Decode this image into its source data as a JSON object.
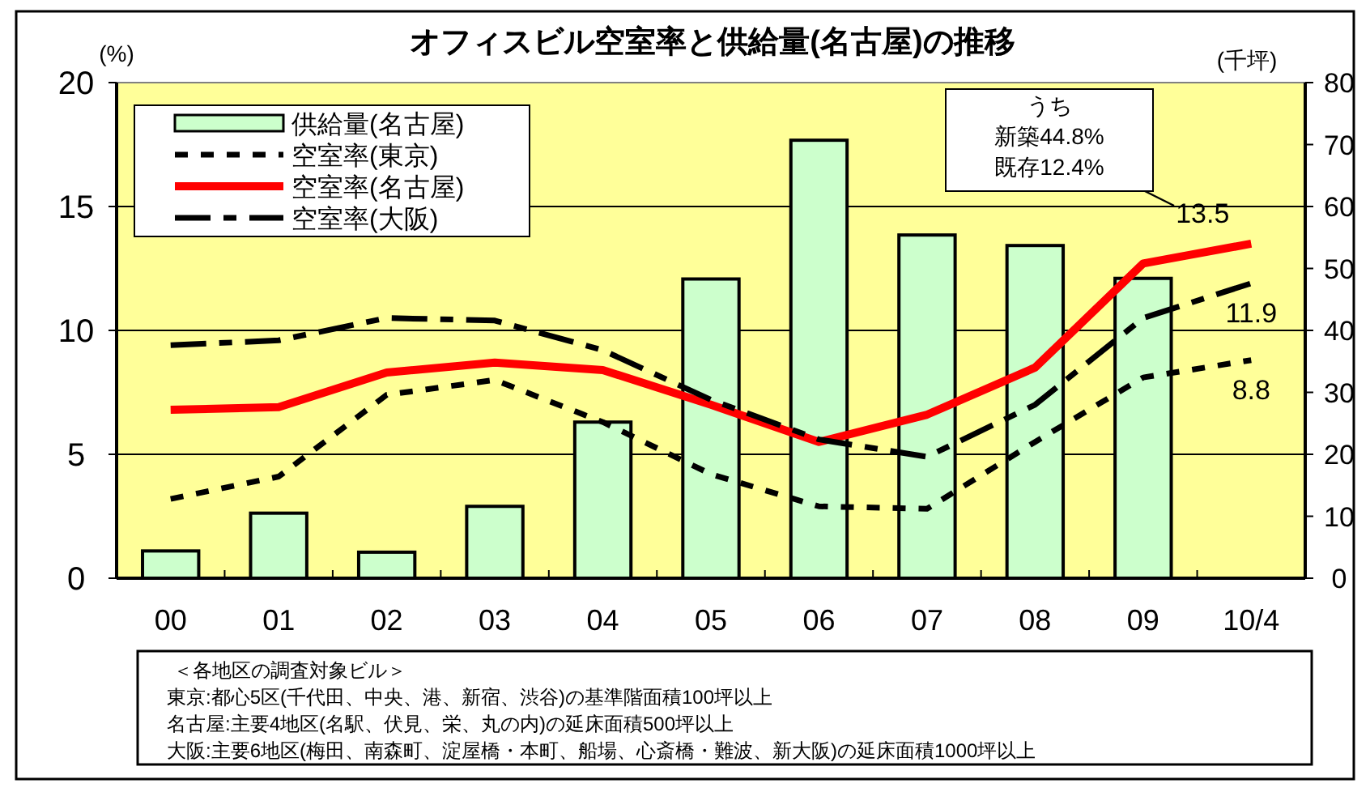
{
  "chart_data": {
    "type": "bar",
    "title": "オフィスビル空室率と供給量(名古屋)の推移",
    "ylabel": "(%)",
    "y2label": "(千坪)",
    "categories": [
      "00",
      "01",
      "02",
      "03",
      "04",
      "05",
      "06",
      "07",
      "08",
      "09",
      "10/4"
    ],
    "ylim": [
      0,
      20
    ],
    "yticks": [
      0,
      5,
      10,
      15,
      20
    ],
    "y2lim": [
      0,
      80
    ],
    "y2ticks": [
      0,
      10,
      20,
      30,
      40,
      50,
      60,
      70,
      80
    ],
    "grid": "y",
    "legend": "top left",
    "series": [
      {
        "name": "供給量(名古屋)",
        "axis": "y2",
        "color": "#ccffcc",
        "values": [
          4.4,
          10.5,
          4.2,
          11.6,
          25.2,
          48.3,
          70.7,
          55.4,
          53.7,
          48.4,
          null
        ]
      },
      {
        "name": "空室率(東京)",
        "type": "line",
        "line_style": "dotted",
        "color": "#000000",
        "values": [
          3.2,
          4.1,
          7.4,
          8.0,
          6.3,
          4.2,
          2.9,
          2.8,
          5.5,
          8.1,
          8.8
        ],
        "value_labels": [
          null,
          null,
          null,
          null,
          null,
          null,
          null,
          null,
          null,
          null,
          "8.8"
        ]
      },
      {
        "name": "空室率(名古屋)",
        "type": "line",
        "line_style": "solid",
        "color": "#ff0000",
        "values": [
          6.8,
          6.9,
          8.3,
          8.7,
          8.4,
          7.0,
          5.5,
          6.6,
          8.5,
          12.7,
          13.5
        ],
        "value_labels": [
          null,
          null,
          null,
          null,
          null,
          null,
          null,
          null,
          null,
          null,
          "13.5"
        ]
      },
      {
        "name": "空室率(大阪)",
        "type": "line",
        "line_style": "dashed",
        "color": "#000000",
        "values": [
          9.4,
          9.6,
          10.5,
          10.4,
          9.2,
          7.2,
          5.6,
          4.9,
          7.0,
          10.5,
          11.9
        ],
        "value_labels": [
          null,
          null,
          null,
          null,
          null,
          null,
          null,
          null,
          null,
          null,
          "11.9"
        ]
      }
    ],
    "annotations": [
      "うち",
      "新築44.8%",
      "既存12.4%",
      "＜各地区の調査対象ビル＞",
      "東京:都心5区(千代田、中央、港、新宿、渋谷)の基準階面積100坪以上",
      "名古屋:主要4地区(名駅、伏見、栄、丸の内)の延床面積500坪以上",
      "大阪:主要6地区(梅田、南森町、淀屋橋・本町、船場、心斎橋・難波、新大阪)の延床面積1000坪以上"
    ]
  }
}
